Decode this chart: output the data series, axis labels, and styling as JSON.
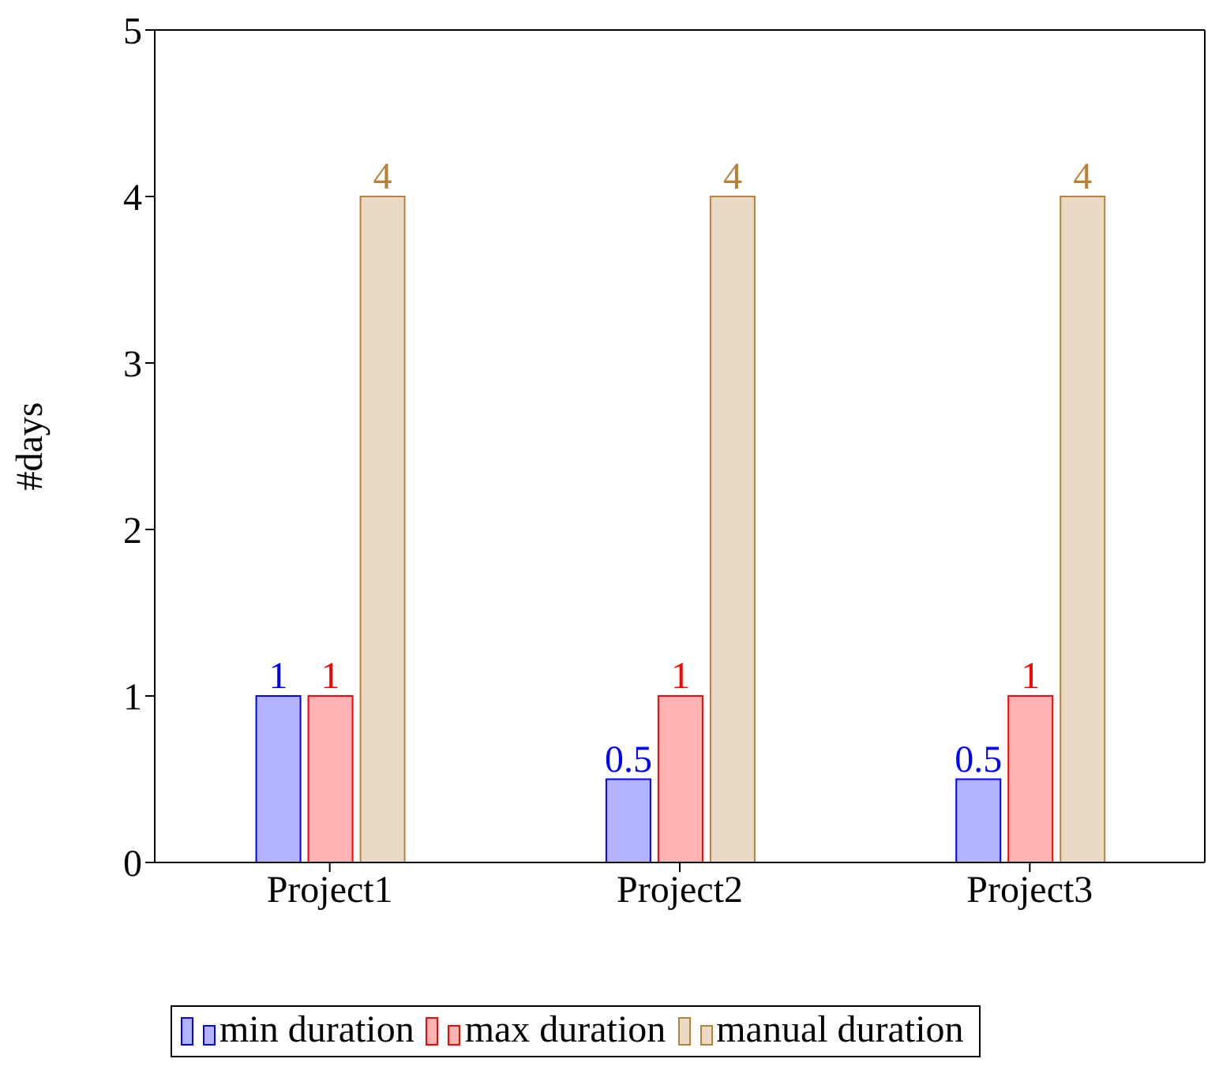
{
  "chart_data": {
    "type": "bar",
    "ylabel": "#days",
    "categories": [
      "Project1",
      "Project2",
      "Project3"
    ],
    "series": [
      {
        "name": "min duration",
        "color": "#b3b3ff",
        "values": [
          1,
          0.5,
          0.5
        ]
      },
      {
        "name": "max duration",
        "color": "#ffb3b3",
        "values": [
          1,
          1,
          1
        ]
      },
      {
        "name": "manual duration",
        "color": "#ead9c4",
        "values": [
          4,
          4,
          4
        ]
      }
    ],
    "ylim": [
      0,
      5
    ],
    "yticks": [
      0,
      1,
      2,
      3,
      4,
      5
    ],
    "grid": false,
    "legend": "bottom",
    "data_labels": true
  }
}
